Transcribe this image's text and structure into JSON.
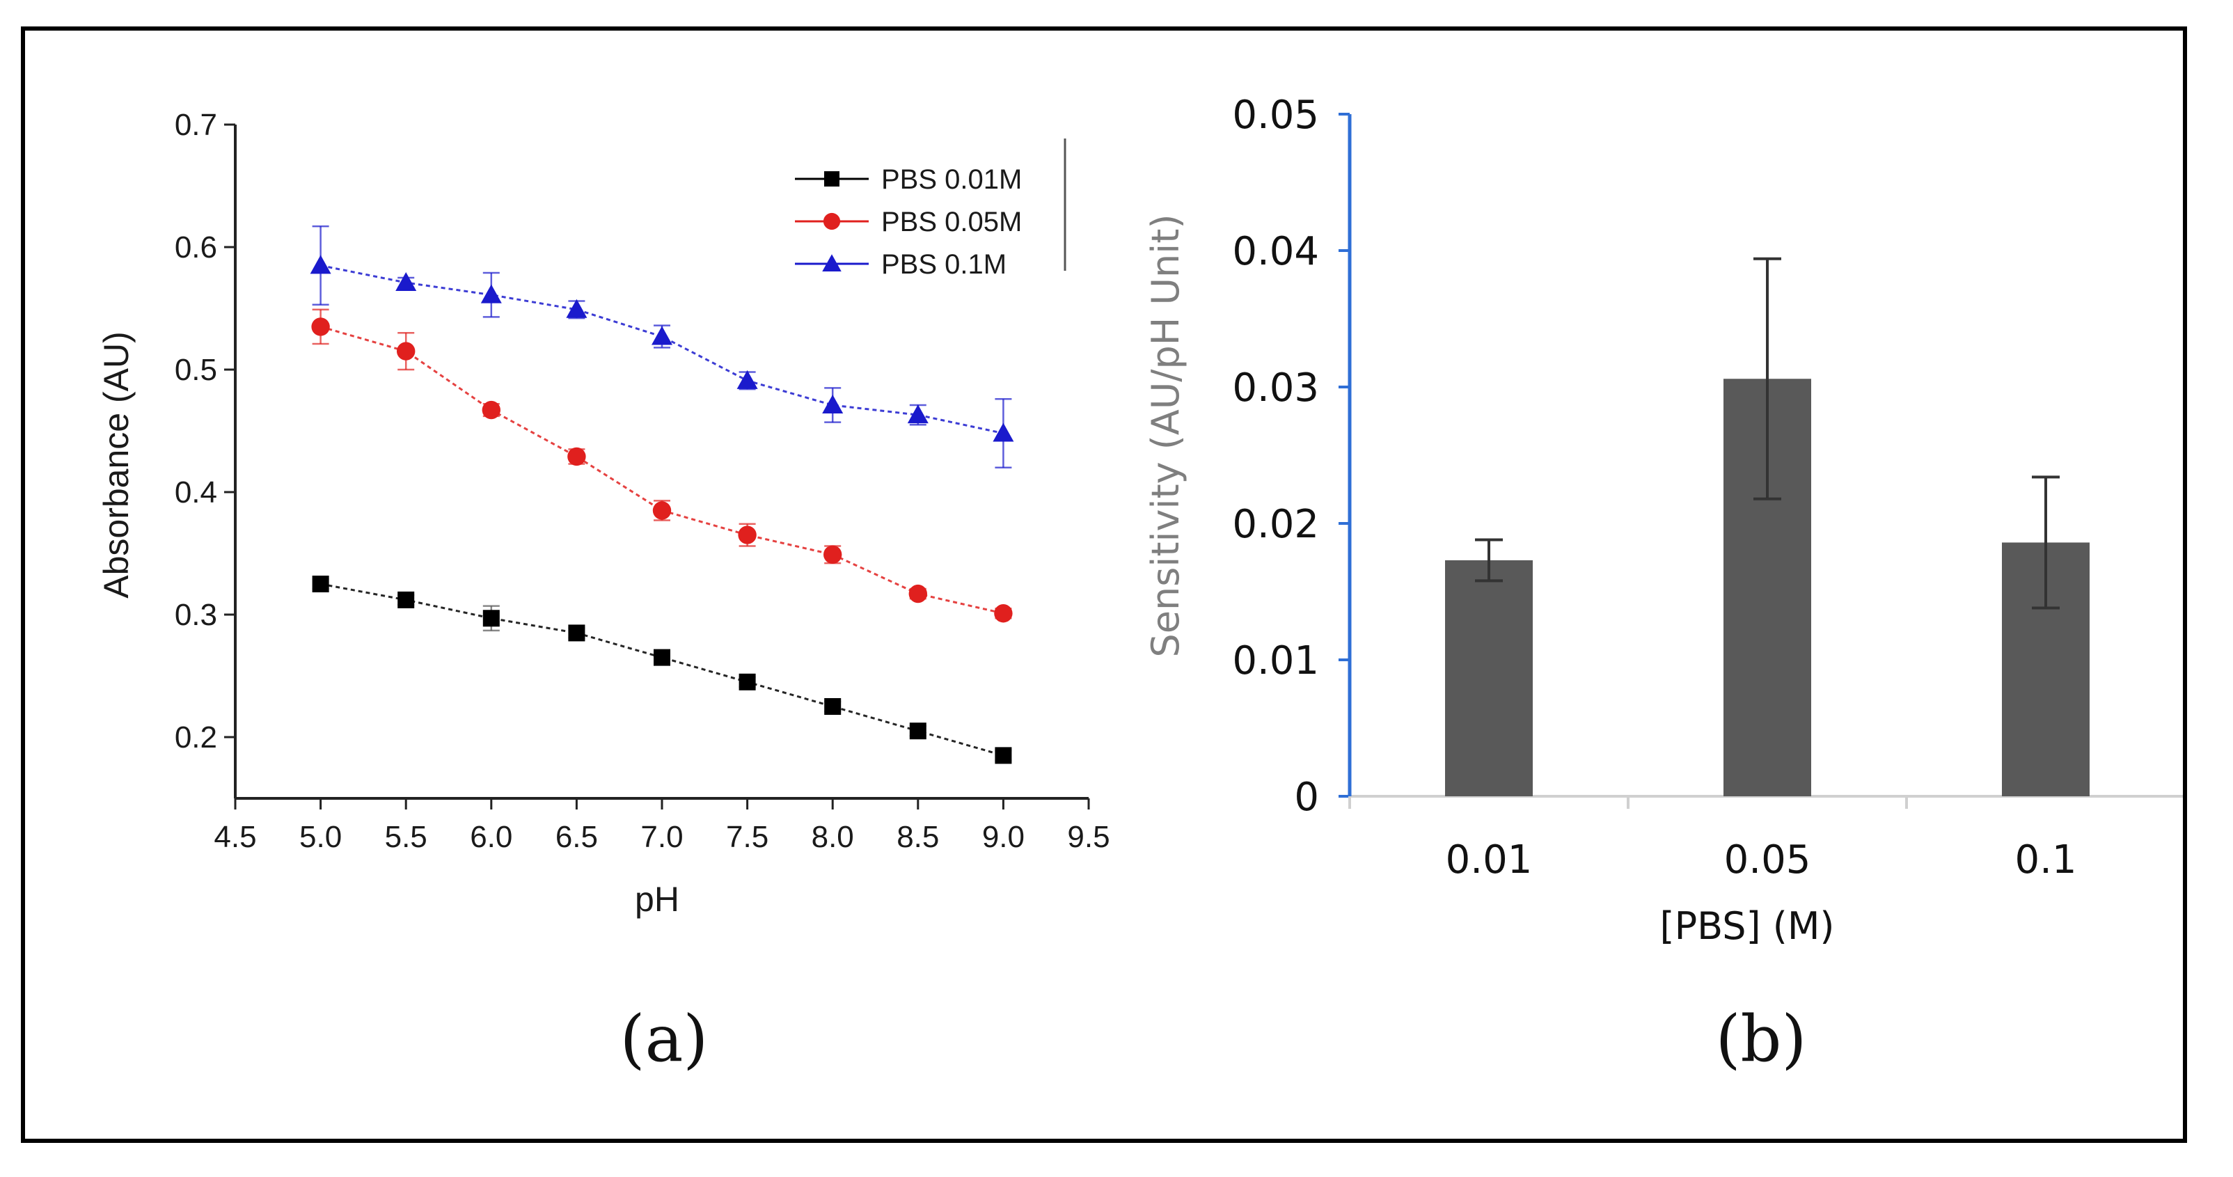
{
  "chart_data": [
    {
      "type": "line",
      "panel_label": "(a)",
      "xlabel": "pH",
      "ylabel": "Absorbance (AU)",
      "xlim": [
        4.5,
        9.5
      ],
      "ylim": [
        0.15,
        0.7
      ],
      "xticks": [
        "4.5",
        "5.0",
        "5.5",
        "6.0",
        "6.5",
        "7.0",
        "7.5",
        "8.0",
        "8.5",
        "9.0",
        "9.5"
      ],
      "yticks": [
        "0.2",
        "0.3",
        "0.4",
        "0.5",
        "0.6",
        "0.7"
      ],
      "legend_position": "top-right",
      "x": [
        5.0,
        5.5,
        6.0,
        6.5,
        7.0,
        7.5,
        8.0,
        8.5,
        9.0
      ],
      "series": [
        {
          "name": "PBS 0.01M",
          "color": "#000000",
          "marker": "square",
          "values": [
            0.325,
            0.312,
            0.297,
            0.285,
            0.265,
            0.245,
            0.225,
            0.205,
            0.185
          ],
          "errors": [
            0.004,
            0.004,
            0.01,
            0.004,
            0.004,
            0.004,
            0.004,
            0.004,
            0.004
          ]
        },
        {
          "name": "PBS 0.05M",
          "color": "#e0201e",
          "marker": "circle",
          "values": [
            0.535,
            0.515,
            0.467,
            0.429,
            0.385,
            0.365,
            0.349,
            0.317,
            0.301
          ],
          "errors": [
            0.014,
            0.015,
            0.005,
            0.006,
            0.008,
            0.009,
            0.007,
            0.004,
            0.004
          ]
        },
        {
          "name": "PBS 0.1M",
          "color": "#1a1acc",
          "marker": "triangle",
          "values": [
            0.585,
            0.571,
            0.561,
            0.549,
            0.527,
            0.491,
            0.471,
            0.463,
            0.448
          ],
          "errors": [
            0.032,
            0.004,
            0.018,
            0.007,
            0.009,
            0.007,
            0.014,
            0.008,
            0.028
          ]
        }
      ]
    },
    {
      "type": "bar",
      "panel_label": "(b)",
      "xlabel": "[PBS] (M)",
      "ylabel": "Sensitivity (AU/pH Unit)",
      "categories": [
        "0.01",
        "0.05",
        "0.1"
      ],
      "values": [
        0.0173,
        0.0306,
        0.0186
      ],
      "errors": [
        0.0015,
        0.0088,
        0.0048
      ],
      "ylim": [
        0,
        0.05
      ],
      "yticks": [
        "0",
        "0.01",
        "0.02",
        "0.03",
        "0.04",
        "0.05"
      ],
      "bar_color": "#595959",
      "y_axis_color": "#2f6fd6",
      "ylabel_color": "#7f7f7f"
    }
  ]
}
